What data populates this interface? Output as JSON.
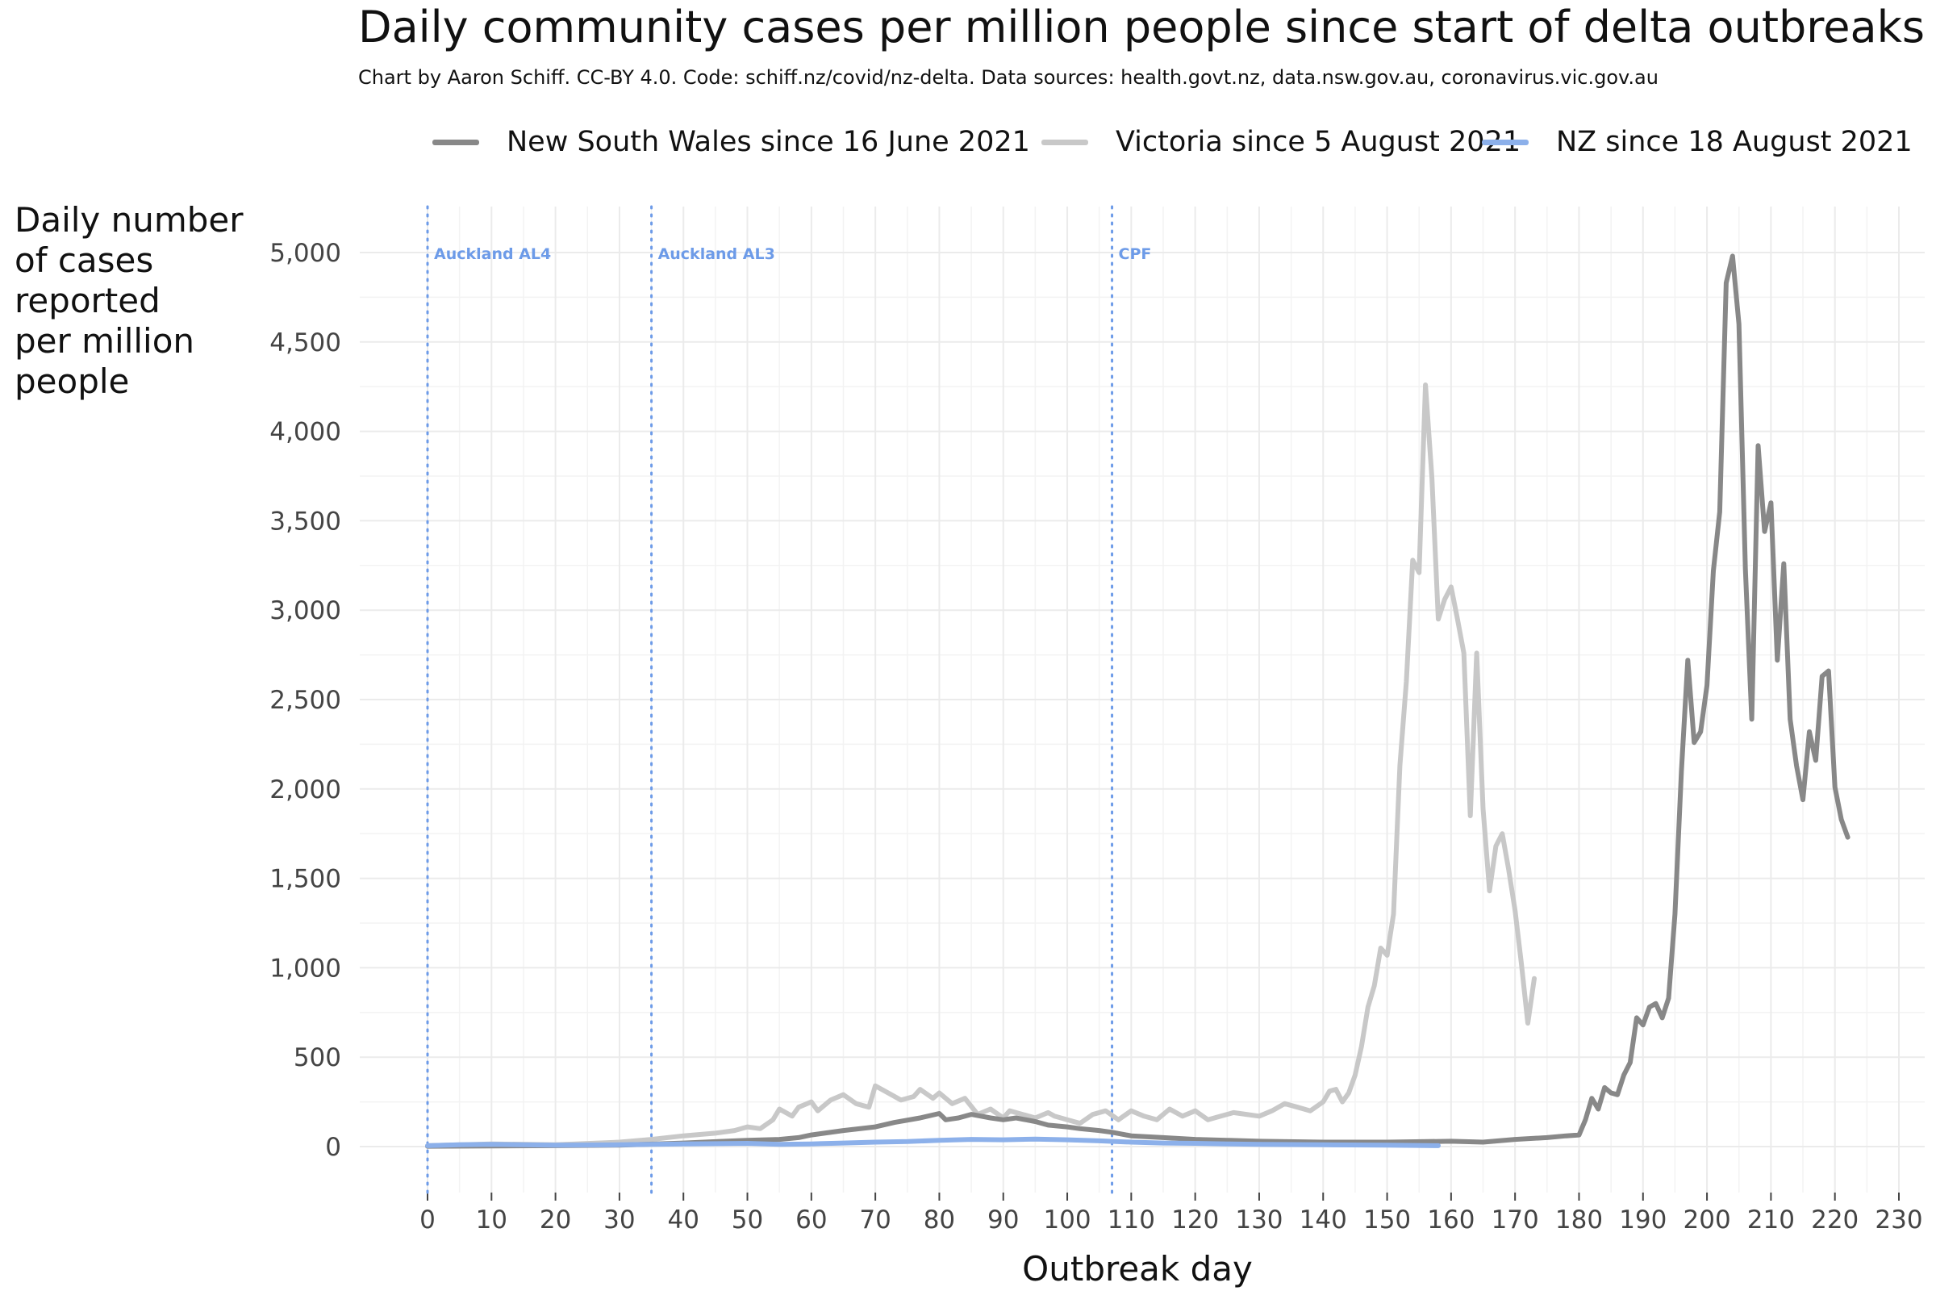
{
  "chart_data": {
    "type": "line",
    "title": "Daily community cases per million people since start of delta outbreaks",
    "subtitle": "Chart by Aaron Schiff. CC-BY 4.0. Code: schiff.nz/covid/nz-delta. Data sources: health.govt.nz, data.nsw.gov.au, coronavirus.vic.gov.au",
    "ylabel_lines": [
      "Daily number",
      "of cases",
      "reported",
      "per million",
      "people"
    ],
    "xlabel": "Outbreak day",
    "xlim": [
      0,
      230
    ],
    "ylim": [
      0,
      5000
    ],
    "x_ticks": [
      0,
      10,
      20,
      30,
      40,
      50,
      60,
      70,
      80,
      90,
      100,
      110,
      120,
      130,
      140,
      150,
      160,
      170,
      180,
      190,
      200,
      210,
      220,
      230
    ],
    "x_tick_labels": [
      "0",
      "10",
      "20",
      "30",
      "40",
      "50",
      "60",
      "70",
      "80",
      "90",
      "100",
      "110",
      "120",
      "130",
      "140",
      "150",
      "160",
      "170",
      "180",
      "190",
      "200",
      "210",
      "220",
      "230"
    ],
    "y_ticks": [
      0,
      500,
      1000,
      1500,
      2000,
      2500,
      3000,
      3500,
      4000,
      4500,
      5000
    ],
    "y_tick_labels": [
      "0",
      "500",
      "1,000",
      "1,500",
      "2,000",
      "2,500",
      "3,000",
      "3,500",
      "4,000",
      "4,500",
      "5,000"
    ],
    "grid": true,
    "legend_position": "top",
    "annotations": [
      {
        "x": 0,
        "label": "Auckland AL4"
      },
      {
        "x": 35,
        "label": "Auckland AL3"
      },
      {
        "x": 107,
        "label": "CPF"
      }
    ],
    "annotation_color": "#6d9be8",
    "series": [
      {
        "name": "New South Wales since 16 June 2021",
        "color": "#888888",
        "points": [
          [
            0,
            2
          ],
          [
            10,
            3
          ],
          [
            20,
            5
          ],
          [
            30,
            8
          ],
          [
            40,
            20
          ],
          [
            50,
            35
          ],
          [
            55,
            40
          ],
          [
            58,
            50
          ],
          [
            60,
            65
          ],
          [
            65,
            90
          ],
          [
            70,
            110
          ],
          [
            73,
            135
          ],
          [
            77,
            160
          ],
          [
            80,
            185
          ],
          [
            81,
            150
          ],
          [
            83,
            160
          ],
          [
            85,
            180
          ],
          [
            88,
            160
          ],
          [
            90,
            150
          ],
          [
            92,
            160
          ],
          [
            95,
            140
          ],
          [
            97,
            120
          ],
          [
            100,
            110
          ],
          [
            102,
            100
          ],
          [
            105,
            90
          ],
          [
            107,
            80
          ],
          [
            110,
            60
          ],
          [
            115,
            50
          ],
          [
            120,
            40
          ],
          [
            125,
            35
          ],
          [
            130,
            30
          ],
          [
            140,
            25
          ],
          [
            150,
            25
          ],
          [
            160,
            30
          ],
          [
            165,
            25
          ],
          [
            170,
            40
          ],
          [
            175,
            50
          ],
          [
            178,
            60
          ],
          [
            180,
            65
          ],
          [
            181,
            150
          ],
          [
            182,
            270
          ],
          [
            183,
            210
          ],
          [
            184,
            330
          ],
          [
            185,
            300
          ],
          [
            186,
            290
          ],
          [
            187,
            400
          ],
          [
            188,
            470
          ],
          [
            189,
            720
          ],
          [
            190,
            680
          ],
          [
            191,
            780
          ],
          [
            192,
            800
          ],
          [
            193,
            720
          ],
          [
            194,
            830
          ],
          [
            195,
            1300
          ],
          [
            196,
            2100
          ],
          [
            197,
            2720
          ],
          [
            198,
            2260
          ],
          [
            199,
            2320
          ],
          [
            200,
            2580
          ],
          [
            201,
            3220
          ],
          [
            202,
            3550
          ],
          [
            203,
            4830
          ],
          [
            204,
            4980
          ],
          [
            205,
            4600
          ],
          [
            206,
            3230
          ],
          [
            207,
            2390
          ],
          [
            208,
            3920
          ],
          [
            209,
            3440
          ],
          [
            210,
            3600
          ],
          [
            211,
            2720
          ],
          [
            212,
            3260
          ],
          [
            213,
            2390
          ],
          [
            214,
            2130
          ],
          [
            215,
            1940
          ],
          [
            216,
            2320
          ],
          [
            217,
            2160
          ],
          [
            218,
            2630
          ],
          [
            219,
            2660
          ],
          [
            220,
            2010
          ],
          [
            221,
            1830
          ],
          [
            222,
            1730
          ]
        ]
      },
      {
        "name": "Victoria since 5 August 2021",
        "color": "#c8c8c8",
        "points": [
          [
            0,
            5
          ],
          [
            10,
            15
          ],
          [
            20,
            10
          ],
          [
            30,
            25
          ],
          [
            35,
            40
          ],
          [
            40,
            60
          ],
          [
            45,
            75
          ],
          [
            48,
            90
          ],
          [
            50,
            110
          ],
          [
            52,
            100
          ],
          [
            54,
            150
          ],
          [
            55,
            210
          ],
          [
            57,
            170
          ],
          [
            58,
            220
          ],
          [
            60,
            250
          ],
          [
            61,
            200
          ],
          [
            63,
            260
          ],
          [
            65,
            290
          ],
          [
            67,
            240
          ],
          [
            69,
            220
          ],
          [
            70,
            340
          ],
          [
            72,
            300
          ],
          [
            74,
            260
          ],
          [
            76,
            280
          ],
          [
            77,
            320
          ],
          [
            79,
            270
          ],
          [
            80,
            300
          ],
          [
            82,
            240
          ],
          [
            84,
            270
          ],
          [
            86,
            180
          ],
          [
            88,
            210
          ],
          [
            90,
            160
          ],
          [
            91,
            200
          ],
          [
            93,
            180
          ],
          [
            95,
            160
          ],
          [
            97,
            190
          ],
          [
            98,
            170
          ],
          [
            100,
            150
          ],
          [
            102,
            130
          ],
          [
            104,
            180
          ],
          [
            106,
            200
          ],
          [
            108,
            150
          ],
          [
            110,
            200
          ],
          [
            112,
            170
          ],
          [
            114,
            150
          ],
          [
            116,
            210
          ],
          [
            118,
            170
          ],
          [
            120,
            200
          ],
          [
            122,
            150
          ],
          [
            124,
            170
          ],
          [
            126,
            190
          ],
          [
            128,
            180
          ],
          [
            130,
            170
          ],
          [
            132,
            200
          ],
          [
            134,
            240
          ],
          [
            136,
            220
          ],
          [
            138,
            200
          ],
          [
            140,
            250
          ],
          [
            141,
            310
          ],
          [
            142,
            320
          ],
          [
            143,
            250
          ],
          [
            144,
            300
          ],
          [
            145,
            400
          ],
          [
            146,
            560
          ],
          [
            147,
            780
          ],
          [
            148,
            900
          ],
          [
            149,
            1110
          ],
          [
            150,
            1070
          ],
          [
            151,
            1300
          ],
          [
            152,
            2130
          ],
          [
            153,
            2600
          ],
          [
            154,
            3280
          ],
          [
            155,
            3210
          ],
          [
            156,
            4260
          ],
          [
            157,
            3740
          ],
          [
            158,
            2950
          ],
          [
            159,
            3060
          ],
          [
            160,
            3130
          ],
          [
            161,
            2950
          ],
          [
            162,
            2760
          ],
          [
            163,
            1850
          ],
          [
            164,
            2760
          ],
          [
            165,
            1890
          ],
          [
            166,
            1430
          ],
          [
            167,
            1680
          ],
          [
            168,
            1750
          ],
          [
            169,
            1550
          ],
          [
            170,
            1320
          ],
          [
            171,
            1020
          ],
          [
            172,
            690
          ],
          [
            173,
            940
          ]
        ]
      },
      {
        "name": "NZ since 18 August 2021",
        "color": "#8cb0ea",
        "points": [
          [
            0,
            5
          ],
          [
            5,
            10
          ],
          [
            10,
            12
          ],
          [
            20,
            8
          ],
          [
            30,
            10
          ],
          [
            40,
            15
          ],
          [
            50,
            18
          ],
          [
            55,
            12
          ],
          [
            60,
            15
          ],
          [
            65,
            20
          ],
          [
            70,
            25
          ],
          [
            75,
            28
          ],
          [
            80,
            35
          ],
          [
            85,
            40
          ],
          [
            90,
            38
          ],
          [
            95,
            42
          ],
          [
            100,
            38
          ],
          [
            105,
            32
          ],
          [
            110,
            25
          ],
          [
            115,
            20
          ],
          [
            120,
            18
          ],
          [
            125,
            15
          ],
          [
            130,
            12
          ],
          [
            140,
            10
          ],
          [
            150,
            8
          ],
          [
            158,
            5
          ]
        ]
      }
    ]
  }
}
